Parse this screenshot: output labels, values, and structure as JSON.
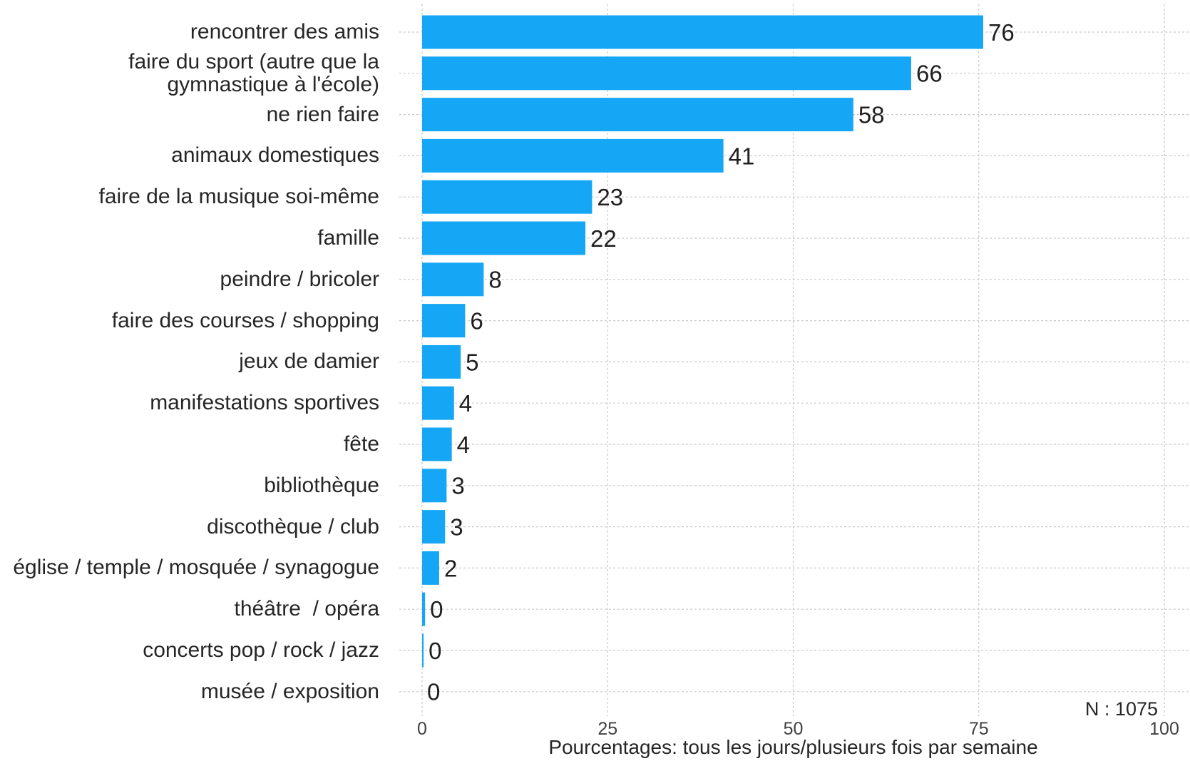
{
  "chart_data": {
    "type": "bar",
    "orientation": "horizontal",
    "categories": [
      "rencontrer des amis",
      "faire du sport (autre que la\ngymnastique à l'école)",
      "ne rien faire",
      "animaux domestiques",
      "faire de la musique soi-même",
      "famille",
      "peindre / bricoler",
      "faire des courses / shopping",
      "jeux de damier",
      "manifestations sportives",
      "fête",
      "bibliothèque",
      "discothèque / club",
      "église / temple / mosquée / synagogue",
      "théâtre  / opéra",
      "concerts pop / rock / jazz",
      "musée / exposition"
    ],
    "values": [
      75.6,
      65.9,
      58.1,
      40.6,
      22.9,
      22.0,
      8.3,
      5.8,
      5.2,
      4.3,
      4.0,
      3.3,
      3.1,
      2.3,
      0.4,
      0.2,
      0.0
    ],
    "value_labels": [
      "76",
      "66",
      "58",
      "41",
      "23",
      "22",
      "8",
      "6",
      "5",
      "4",
      "4",
      "3",
      "3",
      "2",
      "0",
      "0",
      "0"
    ],
    "xlabel": "Pourcentages: tous les jours/plusieurs fois par semaine",
    "ylabel": "",
    "xlim": [
      0,
      100
    ],
    "x_ticks": [
      0,
      25,
      50,
      75,
      100
    ],
    "grid": true,
    "annotation": "N : 1075",
    "bar_color": "#15a7f5"
  }
}
